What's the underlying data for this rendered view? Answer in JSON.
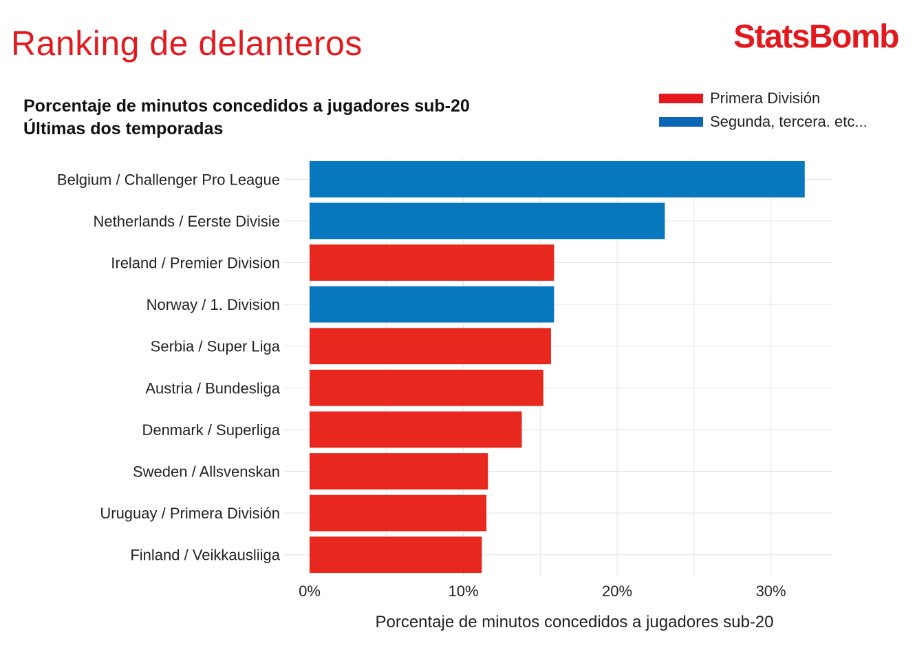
{
  "header": {
    "title": "Ranking de delanteros",
    "brand": "StatsBomb",
    "subtitle_line1": "Porcentaje de minutos concedidos a jugadores sub-20",
    "subtitle_line2": "Últimas dos temporadas"
  },
  "legend": [
    {
      "label": "Primera División",
      "color": "#e3191e"
    },
    {
      "label": "Segunda, tercera. etc...",
      "color": "#0a66b2"
    }
  ],
  "chart_data": {
    "type": "bar",
    "orientation": "horizontal",
    "xlabel": "Porcentaje de minutos concedidos a jugadores sub-20",
    "ylabel": "",
    "xlim": [
      0,
      34
    ],
    "x_ticks": [
      "0%",
      "10%",
      "20%",
      "30%"
    ],
    "x_tick_values": [
      0,
      10,
      20,
      30
    ],
    "grid": true,
    "legend_position": "top-right",
    "categories": [
      "Belgium / Challenger Pro League",
      "Netherlands / Eerste Divisie",
      "Ireland / Premier Division",
      "Norway / 1. Division",
      "Serbia / Super Liga",
      "Austria / Bundesliga",
      "Denmark / Superliga",
      "Sweden / Allsvenskan",
      "Uruguay / Primera División",
      "Finland / Veikkausliiga"
    ],
    "values": [
      32.2,
      23.1,
      15.9,
      15.9,
      15.7,
      15.2,
      13.8,
      11.6,
      11.5,
      11.2
    ],
    "groups": [
      "Segunda, tercera. etc...",
      "Segunda, tercera. etc...",
      "Primera División",
      "Segunda, tercera. etc...",
      "Primera División",
      "Primera División",
      "Primera División",
      "Primera División",
      "Primera División",
      "Primera División"
    ],
    "colors": {
      "Primera División": "#e8281e",
      "Segunda, tercera. etc...": "#0878be"
    }
  }
}
